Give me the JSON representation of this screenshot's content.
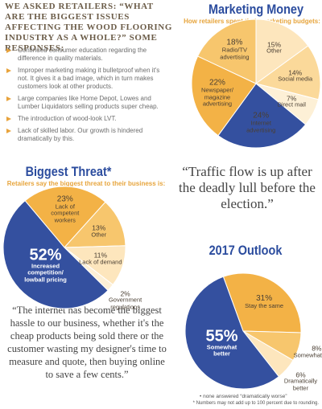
{
  "survey": {
    "heading": "WE ASKED RETAILERS: “WHAT ARE THE BIGGEST ISSUES AFFECTING THE WOOD FLOORING INDUSTRY AS A WHOLE?” SOME RESPONSES:",
    "responses": [
      "Continued consumer education regarding the difference in quality materials.",
      "Improper marketing making it bulletproof when it's not. It gives it a bad image, which in turn makes customers look at other products.",
      "Large companies like Home Depot, Lowes and Lumber Liquidators selling products super cheap.",
      "The introduction of wood-look LVT.",
      "Lack of skilled labor. Our growth is hindered dramatically by this."
    ]
  },
  "chart_data": [
    {
      "type": "pie",
      "title": "Marketing Money",
      "subtitle": "How retailers spent their marketing budgets:",
      "categories": [
        "Other",
        "Social media",
        "Direct mail",
        "Internet advertising",
        "Newspaper/ magazine advertising",
        "Radio/TV advertising"
      ],
      "values": [
        15,
        14,
        7,
        24,
        22,
        18
      ],
      "value_labels": [
        "15%",
        "14%",
        "7%",
        "24%",
        "22%",
        "18%"
      ],
      "colors": [
        "#fde6bd",
        "#fbd99a",
        "#fdf0d6",
        "#34509f",
        "#f3b246",
        "#f7c66d"
      ]
    },
    {
      "type": "pie",
      "title": "Biggest Threat*",
      "subtitle": "Retailers say the biggest threat to their business is:",
      "categories": [
        "Lack of competent workers",
        "Other",
        "Lack of demand",
        "Government regulations",
        "Increased competition/ lowball pricing"
      ],
      "values": [
        23,
        13,
        11,
        2,
        52
      ],
      "value_labels": [
        "23%",
        "13%",
        "11%",
        "2%",
        "52%"
      ],
      "colors": [
        "#f3b246",
        "#f7c66d",
        "#fde6bd",
        "#fdf0d6",
        "#34509f"
      ]
    },
    {
      "type": "pie",
      "title": "2017 Outlook",
      "categories": [
        "Stay the same",
        "Somewhat worse",
        "Dramatically better",
        "Somewhat better"
      ],
      "values": [
        31,
        8,
        6,
        55
      ],
      "value_labels": [
        "31%",
        "8%",
        "6%",
        "55%"
      ],
      "colors": [
        "#f3b246",
        "#f7c66d",
        "#fde6bd",
        "#34509f"
      ],
      "note": "• none answered “dramatically worse”"
    }
  ],
  "quotes": [
    "“Traffic flow is up after the deadly lull before the election.”",
    "“The internet has become the biggest hassle to our business, whether it's the cheap products being sold there or the customer wasting my designer's time to measure and quote, then buying online to save a few cents.”"
  ],
  "footnote": "* Numbers may not add up to 100 percent due to rounding."
}
